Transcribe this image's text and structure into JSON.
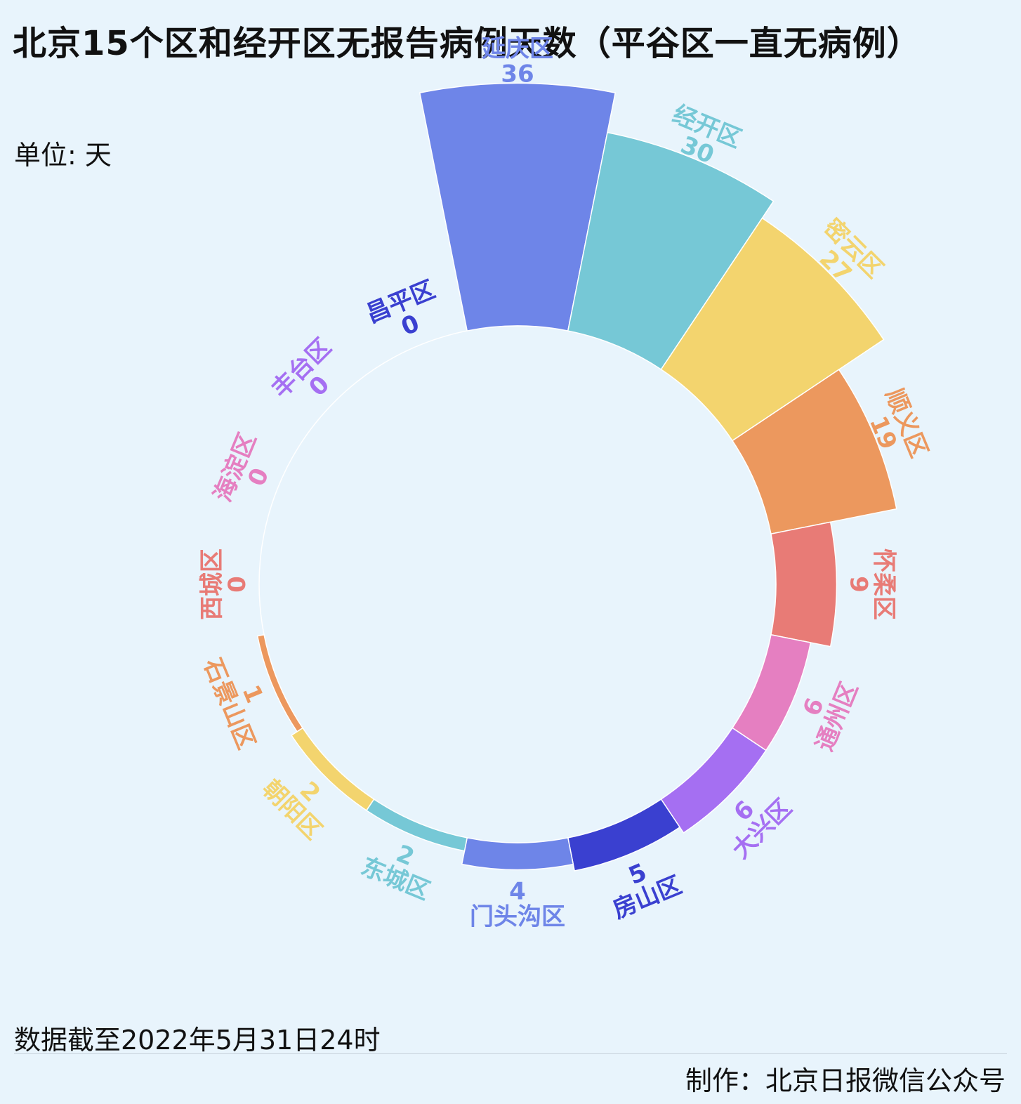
{
  "title": "北京15个区和经开区无报告病例天数（平谷区一直无病例）",
  "unit": "单位: 天",
  "footer": {
    "note": "数据截至2022年5月31日24时",
    "credit": "制作：北京日报微信公众号"
  },
  "chart_data": {
    "type": "polar-bar",
    "unit": "天",
    "categories": [
      "延庆区",
      "经开区",
      "密云区",
      "顺义区",
      "怀柔区",
      "通州区",
      "大兴区",
      "房山区",
      "门头沟区",
      "东城区",
      "朝阳区",
      "石景山区",
      "西城区",
      "海淀区",
      "丰台区",
      "昌平区"
    ],
    "values": [
      36,
      30,
      27,
      19,
      9,
      6,
      6,
      5,
      4,
      2,
      2,
      1,
      0,
      0,
      0,
      0
    ],
    "colors": [
      "#6e85e8",
      "#76c8d6",
      "#f3d46e",
      "#ec985e",
      "#e87b76",
      "#e57fc1",
      "#a56ff2",
      "#3a40d0",
      "#6e85e8",
      "#76c8d6",
      "#f3d46e",
      "#ec985e",
      "#e87b76",
      "#e57fc1",
      "#a56ff2",
      "#3a40d0"
    ]
  }
}
